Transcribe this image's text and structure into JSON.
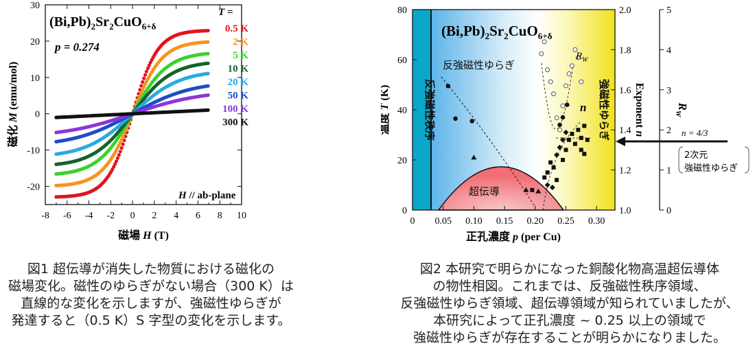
{
  "chart_data": [
    {
      "type": "scatter",
      "title": "(Bi,Pb)2Sr2CuO6+δ",
      "title_main": "(Bi,Pb)",
      "title_sub1": "2",
      "title_mid": "Sr",
      "title_sub2": "2",
      "title_mid2": "CuO",
      "title_sub3": "6+δ",
      "p_label": "p = 0.274",
      "legend_title": "T =",
      "xlabel": "磁場 H (T)",
      "xlabel_jp": "磁場",
      "xlabel_var": "H",
      "xlabel_unit": "(T)",
      "ylabel": "磁化 M (emu/mol)",
      "ylabel_jp": "磁化",
      "ylabel_var": "M",
      "ylabel_unit": "(emu/mol)",
      "annotation": "H // ab-plane",
      "annotation_var": "H",
      "annotation_rest": "// ab-plane",
      "xlim": [
        -8,
        10
      ],
      "ylim": [
        -25,
        30
      ],
      "xticks": [
        "-8",
        "-6",
        "-4",
        "-2",
        "0",
        "2",
        "4",
        "6",
        "8",
        "10"
      ],
      "yticks": [
        "-20",
        "-10",
        "0",
        "10",
        "20",
        "30"
      ],
      "series": [
        {
          "name": "0.5 K",
          "color": "#e0141e",
          "x_range": [
            -7,
            7
          ],
          "saturation": 23,
          "scale": 2.3
        },
        {
          "name": "2 K",
          "color": "#f7941d",
          "x_range": [
            -7,
            7
          ],
          "saturation": 20,
          "scale": 2.7
        },
        {
          "name": "5 K",
          "color": "#39d22d",
          "x_range": [
            -7,
            7
          ],
          "saturation": 17,
          "scale": 3.2
        },
        {
          "name": "10 K",
          "color": "#16622c",
          "x_range": [
            -7,
            7
          ],
          "saturation": 14.5,
          "scale": 3.6
        },
        {
          "name": "20 K",
          "color": "#29aae1",
          "x_range": [
            -7,
            7
          ],
          "saturation": 12,
          "scale": 4.3
        },
        {
          "name": "50 K",
          "color": "#1c4cc7",
          "x_range": [
            -7,
            7
          ],
          "saturation": 9,
          "scale": 5.5
        },
        {
          "name": "100 K",
          "color": "#8b36d8",
          "x_range": [
            -7,
            7
          ],
          "saturation": 6.5,
          "scale": 6.5
        },
        {
          "name": "300 K",
          "color": "#111111",
          "x_range": [
            -7,
            7
          ],
          "linear_slope": 0.145
        }
      ]
    },
    {
      "type": "scatter",
      "title": "(Bi,Pb)2Sr2CuO6+δ",
      "xlabel": "正孔濃度 p (per Cu)",
      "xlabel_jp": "正孔濃度",
      "xlabel_var": "p",
      "xlabel_unit": "(per Cu)",
      "ylabel": "温度 T (K)",
      "ylabel_jp": "温度",
      "ylabel_var": "T",
      "ylabel_unit": "(K)",
      "y2label": "Exponent n",
      "y2label_word": "Exponent",
      "y2label_var": "n",
      "y3label": "RW",
      "xlim": [
        0,
        0.33
      ],
      "ylim": [
        0,
        80
      ],
      "y2lim": [
        1.0,
        2.0
      ],
      "y3lim": [
        0,
        5
      ],
      "xticks": [
        "0",
        "0.05",
        "0.10",
        "0.15",
        "0.20",
        "0.25",
        "0.30"
      ],
      "yticks": [
        "0",
        "20",
        "40",
        "60",
        "80"
      ],
      "y2ticks": [
        "1.0",
        "1.2",
        "1.4",
        "1.6",
        "1.8",
        "2.0"
      ],
      "y3ticks": [
        "0",
        "1",
        "2",
        "3",
        "4",
        "5"
      ],
      "regions": {
        "afm_order": "反強磁性秩序",
        "afm_fluct": "反強磁性ゆらぎ",
        "sc": "超伝導",
        "fm_fluct": "強磁性ゆらぎ"
      },
      "curve_labels": {
        "rw": "R",
        "rw_sub": "W",
        "n": "n"
      },
      "arrow_label": "n = 4/3",
      "bracket_line1": "2次元",
      "bracket_line2": "強磁性ゆらぎ",
      "circles_filled": [
        [
          0.058,
          49.5
        ],
        [
          0.07,
          36.5
        ],
        [
          0.097,
          35.5
        ],
        [
          0.24,
          34
        ],
        [
          0.245,
          37
        ],
        [
          0.252,
          42
        ]
      ],
      "triangles": [
        [
          0.1,
          21
        ],
        [
          0.185,
          8
        ],
        [
          0.205,
          7.5
        ]
      ],
      "squares": [
        [
          0.195,
          8
        ],
        [
          0.215,
          13
        ],
        [
          0.22,
          15
        ],
        [
          0.225,
          19
        ],
        [
          0.23,
          17
        ],
        [
          0.235,
          12
        ]
      ],
      "diamonds": [
        [
          0.22,
          10
        ],
        [
          0.228,
          9
        ],
        [
          0.235,
          22
        ],
        [
          0.24,
          25
        ],
        [
          0.245,
          28
        ],
        [
          0.25,
          31
        ]
      ],
      "open_circles_rw": [
        [
          0.21,
          3.9
        ],
        [
          0.215,
          4.2
        ],
        [
          0.22,
          3.5
        ],
        [
          0.225,
          3.2
        ],
        [
          0.23,
          2.9
        ],
        [
          0.235,
          2.3
        ],
        [
          0.24,
          2.0
        ],
        [
          0.245,
          2.6
        ],
        [
          0.25,
          3.1
        ],
        [
          0.255,
          3.4
        ],
        [
          0.26,
          3.6
        ],
        [
          0.265,
          4.0
        ],
        [
          0.27,
          3.8
        ],
        [
          0.275,
          3.2
        ]
      ],
      "n_points": [
        [
          0.245,
          1.25
        ],
        [
          0.25,
          1.3
        ],
        [
          0.255,
          1.35
        ],
        [
          0.26,
          1.38
        ],
        [
          0.265,
          1.33
        ],
        [
          0.27,
          1.4
        ],
        [
          0.275,
          1.36
        ],
        [
          0.28,
          1.42
        ],
        [
          0.285,
          1.35
        ],
        [
          0.275,
          1.3
        ],
        [
          0.28,
          1.28
        ]
      ]
    }
  ],
  "captions": {
    "fig1": [
      "図1 超伝導が消失した物質における磁化の",
      "磁場変化。磁性のゆらぎがない場合（300 K）は",
      "直線的な変化を示しますが、強磁性ゆらぎが",
      "発達すると（0.5 K）S 字型の変化を示します。"
    ],
    "fig2": [
      "図2 本研究で明らかになった銅酸化物高温超伝導体",
      "の物性相図。これまでは、反強磁性秩序領域、",
      "反強磁性ゆらぎ領域、超伝導領域が知られていましたが、",
      "本研究によって正孔濃度 ~ 0.25 以上の領域で",
      "強磁性ゆらぎが存在することが明らかになりました。"
    ]
  }
}
